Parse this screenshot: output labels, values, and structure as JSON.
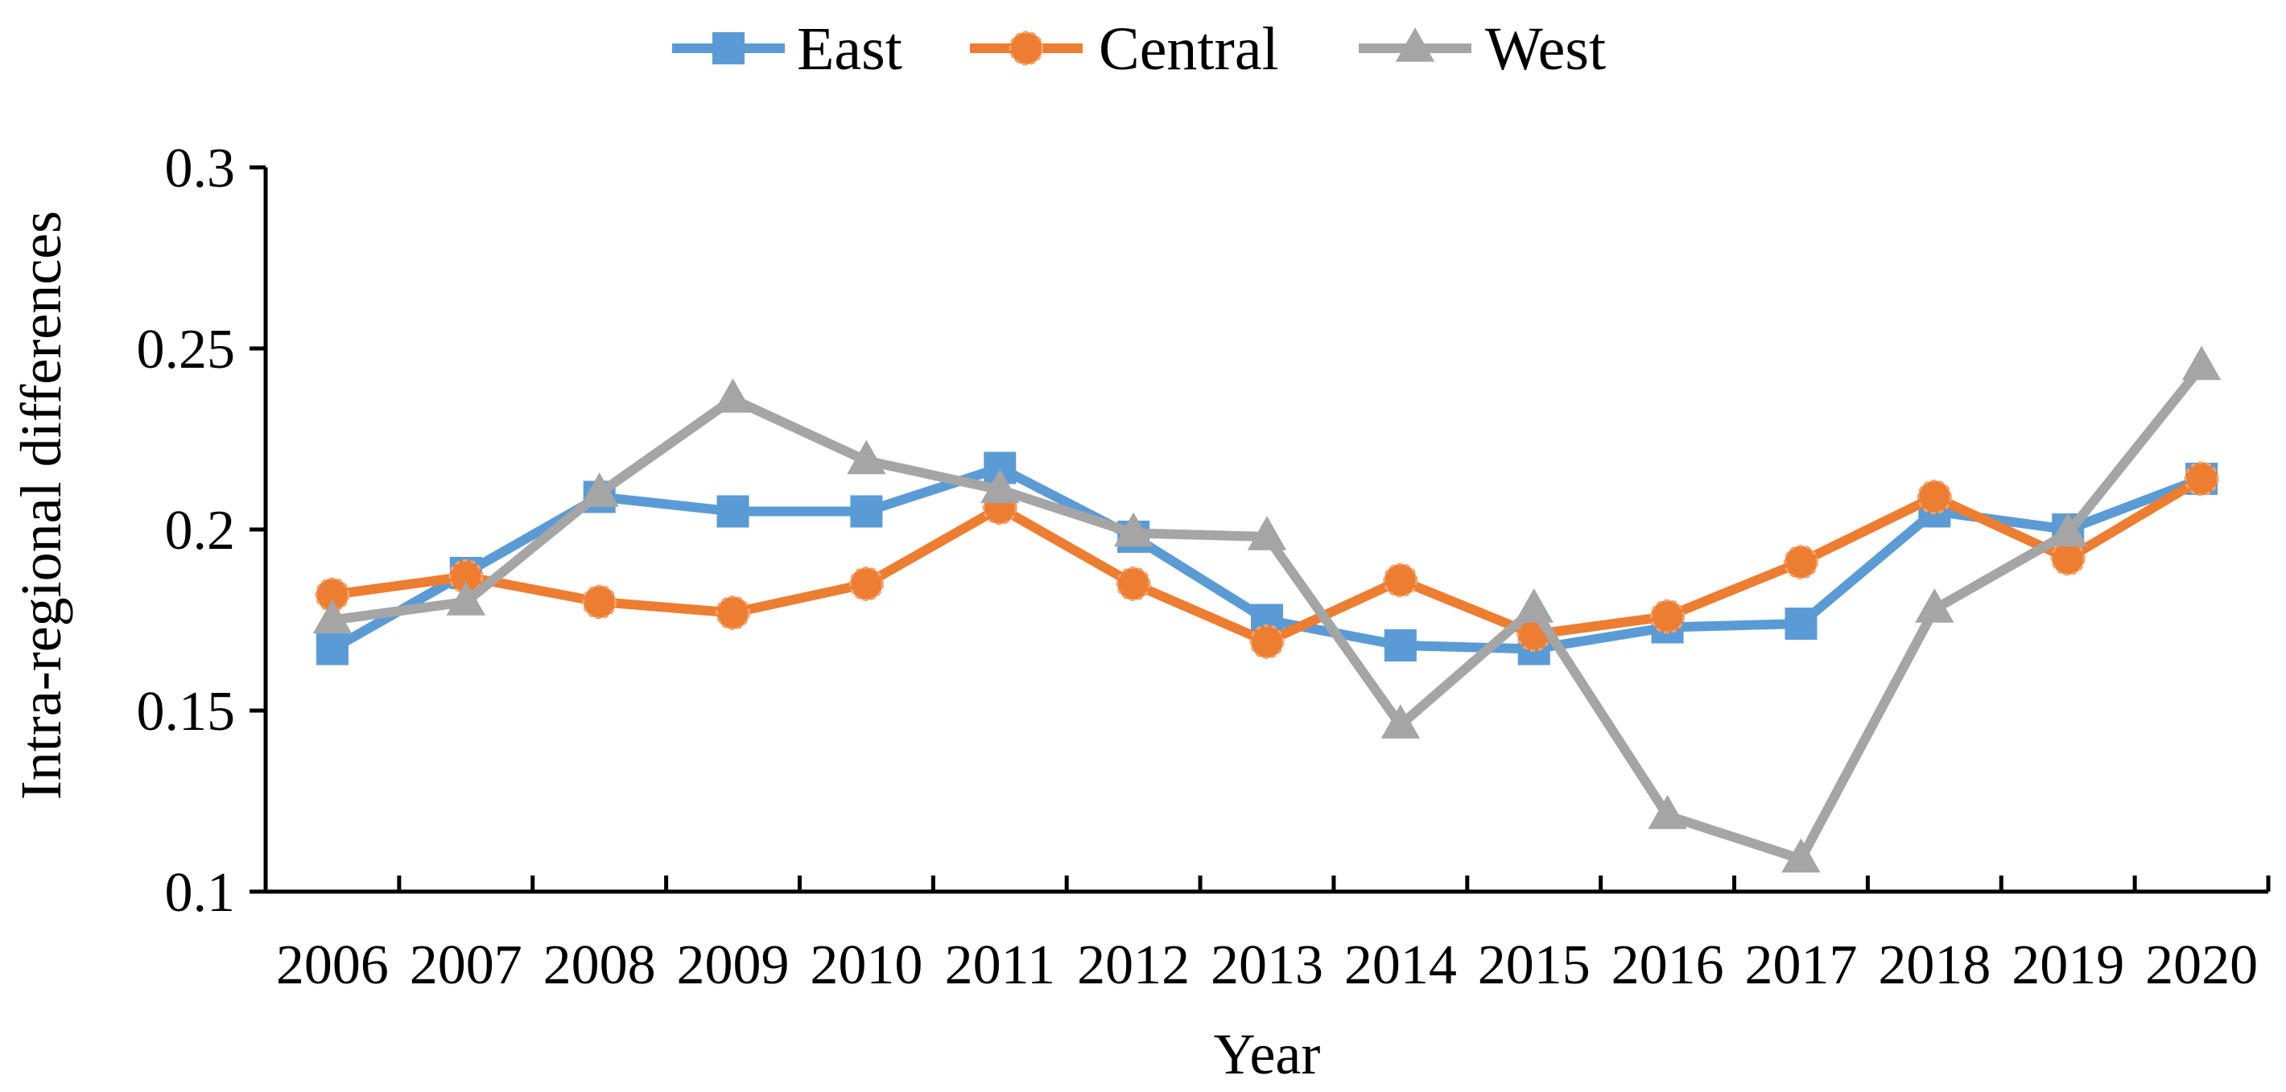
{
  "chart_data": {
    "type": "line",
    "title": "",
    "xlabel": "Year",
    "ylabel": "Intra-regional differences",
    "ylim": [
      0.1,
      0.3
    ],
    "yticks": [
      "0.1",
      "0.15",
      "0.2",
      "0.25",
      "0.3"
    ],
    "categories": [
      "2006",
      "2007",
      "2008",
      "2009",
      "2010",
      "2011",
      "2012",
      "2013",
      "2014",
      "2015",
      "2016",
      "2017",
      "2018",
      "2019",
      "2020"
    ],
    "legend_position": "top-center",
    "series": [
      {
        "name": "East",
        "color": "#5B9BD5",
        "marker": "square",
        "values": [
          0.167,
          0.188,
          0.209,
          0.205,
          0.205,
          0.217,
          0.198,
          0.175,
          0.168,
          0.167,
          0.173,
          0.174,
          0.205,
          0.2,
          0.214
        ]
      },
      {
        "name": "Central",
        "color": "#ED7D31",
        "marker": "circle",
        "values": [
          0.182,
          0.187,
          0.18,
          0.177,
          0.185,
          0.206,
          0.185,
          0.169,
          0.186,
          0.171,
          0.176,
          0.191,
          0.209,
          0.192,
          0.214
        ]
      },
      {
        "name": "West",
        "color": "#A5A5A5",
        "marker": "triangle",
        "values": [
          0.175,
          0.18,
          0.21,
          0.236,
          0.219,
          0.211,
          0.199,
          0.198,
          0.146,
          0.178,
          0.121,
          0.109,
          0.178,
          0.199,
          0.245
        ]
      }
    ]
  }
}
